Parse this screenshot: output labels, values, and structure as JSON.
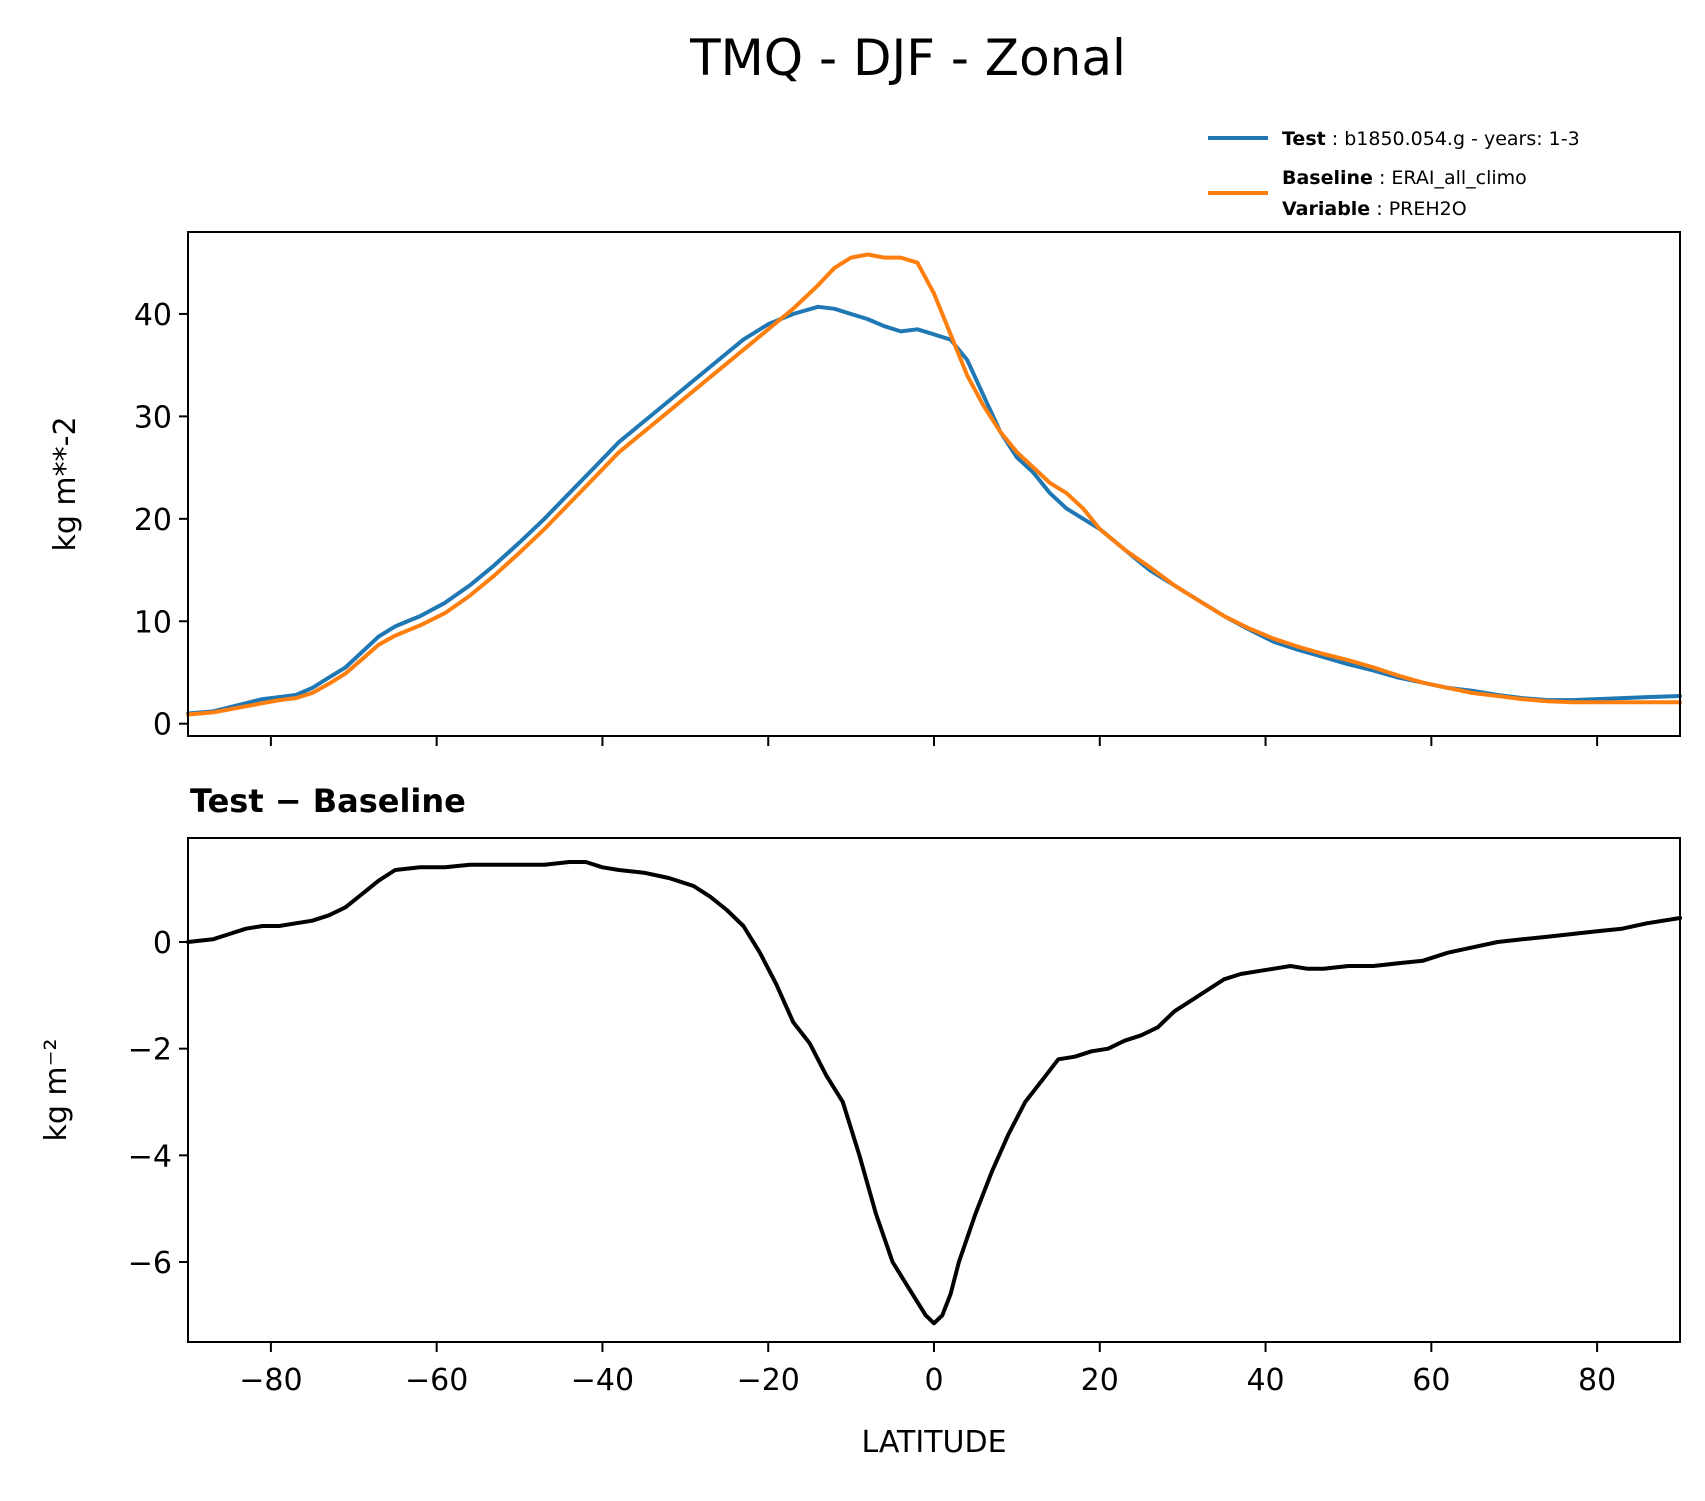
{
  "figure": {
    "title": "TMQ - DJF - Zonal"
  },
  "legend": {
    "entries": [
      {
        "key": "Test",
        "sep": " : ",
        "value": "b1850.054.g - years: 1-3",
        "color": "#1f77b4"
      },
      {
        "key": "Baseline",
        "sep": " : ",
        "value": "ERAI_all_climo",
        "color": "#ff7f0e"
      },
      {
        "key": "Variable",
        "sep": " : ",
        "value": "PREH2O",
        "color": "#ff7f0e"
      }
    ],
    "placement": "above top-right"
  },
  "chart_data": [
    {
      "type": "line",
      "xlabel": "",
      "ylabel": "kg m**-2",
      "xlim": [
        -90,
        90
      ],
      "ylim": [
        -1.2,
        48
      ],
      "xticks": [
        -80,
        -60,
        -40,
        -20,
        0,
        20,
        40,
        60,
        80
      ],
      "yticks": [
        0,
        10,
        20,
        30,
        40
      ],
      "ytick_labels": [
        "0",
        "10",
        "20",
        "30",
        "40"
      ],
      "grid": false,
      "x": [
        -90,
        -87,
        -85,
        -83,
        -81,
        -79,
        -77,
        -75,
        -73,
        -71,
        -69,
        -67,
        -65,
        -62,
        -59,
        -56,
        -53,
        -50,
        -47,
        -44,
        -41,
        -38,
        -35,
        -32,
        -29,
        -26,
        -23,
        -20,
        -17,
        -14,
        -12,
        -10,
        -8,
        -6,
        -4,
        -2,
        0,
        2,
        4,
        6,
        8,
        10,
        12,
        14,
        16,
        18,
        20,
        23,
        26,
        29,
        32,
        35,
        38,
        41,
        44,
        47,
        50,
        53,
        56,
        59,
        62,
        65,
        68,
        71,
        74,
        77,
        80,
        83,
        86,
        90
      ],
      "series": [
        {
          "name": "Test",
          "color": "#1f77b4",
          "values": [
            1.0,
            1.2,
            1.6,
            2.0,
            2.4,
            2.6,
            2.8,
            3.5,
            4.5,
            5.5,
            7.0,
            8.5,
            9.5,
            10.5,
            11.8,
            13.5,
            15.5,
            17.7,
            20.0,
            22.5,
            25.0,
            27.5,
            29.5,
            31.5,
            33.5,
            35.5,
            37.5,
            39.0,
            40.0,
            40.7,
            40.5,
            40.0,
            39.5,
            38.8,
            38.3,
            38.5,
            38.0,
            37.5,
            35.5,
            32.0,
            28.5,
            26.0,
            24.5,
            22.5,
            21.0,
            20.0,
            19.0,
            17.0,
            15.0,
            13.5,
            12.0,
            10.5,
            9.2,
            8.0,
            7.2,
            6.5,
            5.8,
            5.2,
            4.5,
            4.0,
            3.5,
            3.2,
            2.8,
            2.5,
            2.3,
            2.3,
            2.4,
            2.5,
            2.6,
            2.7
          ]
        },
        {
          "name": "Baseline",
          "color": "#ff7f0e",
          "values": [
            0.9,
            1.1,
            1.4,
            1.7,
            2.0,
            2.3,
            2.5,
            3.0,
            3.9,
            4.9,
            6.3,
            7.7,
            8.6,
            9.6,
            10.8,
            12.5,
            14.5,
            16.7,
            19.0,
            21.5,
            24.0,
            26.5,
            28.5,
            30.5,
            32.5,
            34.5,
            36.5,
            38.5,
            40.5,
            42.8,
            44.5,
            45.5,
            45.8,
            45.5,
            45.5,
            45.0,
            42.0,
            38.0,
            34.0,
            31.0,
            28.5,
            26.5,
            25.0,
            23.5,
            22.5,
            21.0,
            19.0,
            17.0,
            15.3,
            13.5,
            12.0,
            10.5,
            9.3,
            8.3,
            7.5,
            6.8,
            6.2,
            5.5,
            4.7,
            4.0,
            3.5,
            3.0,
            2.7,
            2.4,
            2.2,
            2.1,
            2.1,
            2.1,
            2.1,
            2.1
          ]
        }
      ]
    },
    {
      "type": "line",
      "title": "Test − Baseline",
      "xlabel": "LATITUDE",
      "ylabel": "kg m⁻²",
      "xlim": [
        -90,
        90
      ],
      "ylim": [
        -7.5,
        1.95
      ],
      "xticks": [
        -80,
        -60,
        -40,
        -20,
        0,
        20,
        40,
        60,
        80
      ],
      "xtick_labels": [
        "−80",
        "−60",
        "−40",
        "−20",
        "0",
        "20",
        "40",
        "60",
        "80"
      ],
      "yticks": [
        -6,
        -4,
        -2,
        0
      ],
      "ytick_labels": [
        "−6",
        "−4",
        "−2",
        "0"
      ],
      "grid": false,
      "x": [
        -90,
        -87,
        -85,
        -83,
        -81,
        -79,
        -77,
        -75,
        -73,
        -71,
        -69,
        -67,
        -65,
        -62,
        -59,
        -56,
        -53,
        -50,
        -47,
        -44,
        -42,
        -40,
        -38,
        -35,
        -32,
        -29,
        -27,
        -25,
        -23,
        -21,
        -19,
        -17,
        -15,
        -13,
        -11,
        -9,
        -7,
        -5,
        -3,
        -1,
        0,
        1,
        2,
        3,
        5,
        7,
        9,
        11,
        13,
        15,
        17,
        19,
        21,
        23,
        25,
        27,
        29,
        31,
        33,
        35,
        37,
        39,
        41,
        43,
        45,
        47,
        50,
        53,
        56,
        59,
        62,
        65,
        68,
        71,
        74,
        77,
        80,
        83,
        86,
        90
      ],
      "series": [
        {
          "name": "",
          "color": "#000000",
          "values": [
            0.0,
            0.05,
            0.15,
            0.25,
            0.3,
            0.3,
            0.35,
            0.4,
            0.5,
            0.65,
            0.9,
            1.15,
            1.35,
            1.4,
            1.4,
            1.45,
            1.45,
            1.45,
            1.45,
            1.5,
            1.5,
            1.4,
            1.35,
            1.3,
            1.2,
            1.05,
            0.85,
            0.6,
            0.3,
            -0.2,
            -0.8,
            -1.5,
            -1.9,
            -2.5,
            -3.0,
            -4.0,
            -5.1,
            -6.0,
            -6.5,
            -7.0,
            -7.15,
            -7.0,
            -6.6,
            -6.0,
            -5.1,
            -4.3,
            -3.6,
            -3.0,
            -2.6,
            -2.2,
            -2.15,
            -2.05,
            -2.0,
            -1.85,
            -1.75,
            -1.6,
            -1.3,
            -1.1,
            -0.9,
            -0.7,
            -0.6,
            -0.55,
            -0.5,
            -0.45,
            -0.5,
            -0.5,
            -0.45,
            -0.45,
            -0.4,
            -0.35,
            -0.2,
            -0.1,
            0.0,
            0.05,
            0.1,
            0.15,
            0.2,
            0.25,
            0.35,
            0.45
          ]
        }
      ]
    }
  ]
}
